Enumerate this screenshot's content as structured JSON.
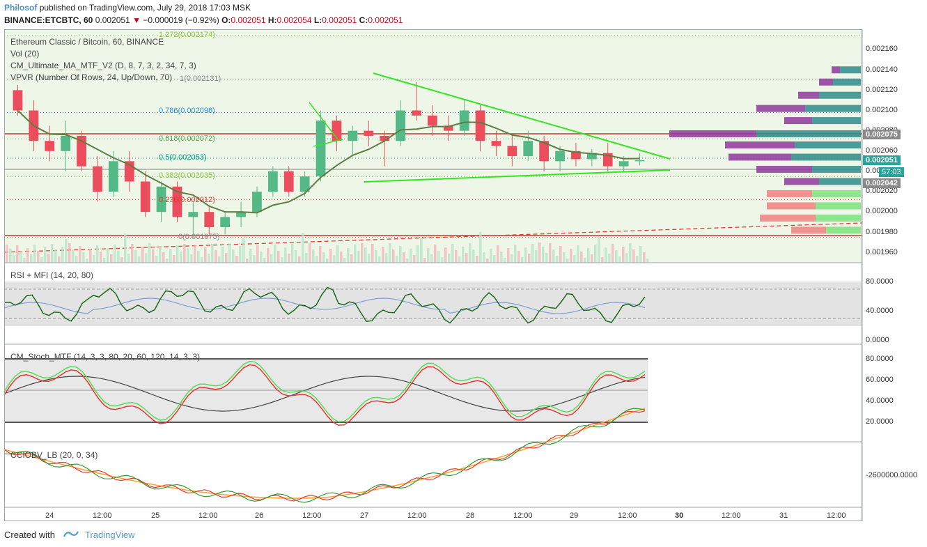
{
  "header": {
    "author": "Philosof",
    "published": "published on TradingView.com, July 29, 2018 17:03 MSK",
    "symbol": "BINANCE:ETCBTC, 60",
    "last": "0.002051",
    "change": "−0.000019 (−0.92%)",
    "o_label": "O:",
    "o": "0.002051",
    "h_label": "H:",
    "h": "0.002054",
    "l_label": "L:",
    "l": "0.002051",
    "c_label": "C:",
    "c": "0.002051"
  },
  "legend": {
    "title": "Ethereum Classic / Bitcoin, 60, BINANCE",
    "vol": "Vol (20)",
    "ma": "CM_Ultimate_MA_MTF_V2 (D, 8, 7, 3, 2, 34, 7, 3)",
    "vpvr": "VPVR (Number Of Rows, 24, Up/Down, 70)"
  },
  "fib_labels": [
    "1.272(0.002174)",
    "1(0.002131)",
    "0.786(0.002098)",
    "0.618(0.002072)",
    "0.5(0.002053)",
    "0.382(0.002035)",
    "0.236(0.002012)",
    "0(0.001975)"
  ],
  "price_axis": [
    "0.002160",
    "0.002140",
    "0.002120",
    "0.002100",
    "0.002080",
    "0.002060",
    "0.002040",
    "0.002020",
    "0.002000",
    "0.001980",
    "0.001960"
  ],
  "price_badges": [
    "0.002075",
    "0.002051",
    "57:03",
    "0.002042"
  ],
  "rsi": {
    "label": "RSI + MFI (14, 20, 80)",
    "axis": [
      "80.0000",
      "40.0000",
      "0.0000"
    ]
  },
  "stoch": {
    "label": "CM_Stoch_MTF (14, 3, 3, 80, 20, 60, 120, 14, 3, 3)",
    "axis": [
      "80.0000",
      "60.0000",
      "40.0000",
      "20.0000"
    ]
  },
  "cci": {
    "label": "CCIOBV_LB (20, 0, 34)",
    "axis": [
      "-2600000.0000"
    ]
  },
  "time_axis": [
    "24",
    "12:00",
    "25",
    "12:00",
    "26",
    "12:00",
    "27",
    "12:00",
    "28",
    "12:00",
    "29",
    "12:00",
    "30",
    "12:00",
    "31",
    "12:00"
  ],
  "footer": {
    "created": "Created with",
    "brand": "TradingView"
  },
  "colors": {
    "up": "#53b987",
    "down": "#eb4d5c",
    "ma": "#5b7f43",
    "trend": "#33e61f",
    "support": "#c0392b",
    "vp_up": "#2e8b8b",
    "vp_down": "#8e3a9b"
  },
  "chart_data": {
    "type": "candlestick",
    "price_range": [
      0.00195,
      0.00218
    ],
    "fib_levels": [
      0.002174,
      0.002131,
      0.002098,
      0.002072,
      0.002053,
      0.002035,
      0.002012,
      0.001975
    ],
    "candles_approx": [
      [
        0.00212,
        0.002125,
        0.002095,
        0.0021
      ],
      [
        0.0021,
        0.00211,
        0.00206,
        0.00207
      ],
      [
        0.00207,
        0.002085,
        0.00205,
        0.00206
      ],
      [
        0.00206,
        0.00209,
        0.00204,
        0.002075
      ],
      [
        0.002075,
        0.00208,
        0.00204,
        0.002045
      ],
      [
        0.002045,
        0.002055,
        0.00201,
        0.00202
      ],
      [
        0.00202,
        0.00206,
        0.002015,
        0.00205
      ],
      [
        0.00205,
        0.00206,
        0.00202,
        0.00203
      ],
      [
        0.00203,
        0.00204,
        0.001995,
        0.002
      ],
      [
        0.002,
        0.00203,
        0.00199,
        0.002025
      ],
      [
        0.002025,
        0.00203,
        0.00199,
        0.001995
      ],
      [
        0.001995,
        0.00201,
        0.001975,
        0.002
      ],
      [
        0.002,
        0.002005,
        0.001978,
        0.001985
      ],
      [
        0.001985,
        0.002,
        0.001978,
        0.001995
      ],
      [
        0.001995,
        0.00201,
        0.001985,
        0.002
      ],
      [
        0.002,
        0.002025,
        0.001995,
        0.00202
      ],
      [
        0.00202,
        0.002045,
        0.002015,
        0.00204
      ],
      [
        0.00204,
        0.002045,
        0.002015,
        0.00202
      ],
      [
        0.00202,
        0.00204,
        0.002015,
        0.002035
      ],
      [
        0.002035,
        0.0021,
        0.00203,
        0.00209
      ],
      [
        0.00209,
        0.002095,
        0.00206,
        0.00207
      ],
      [
        0.00207,
        0.002085,
        0.002055,
        0.00208
      ],
      [
        0.00208,
        0.00209,
        0.002065,
        0.002075
      ],
      [
        0.002075,
        0.00208,
        0.002045,
        0.00207
      ],
      [
        0.00207,
        0.00211,
        0.002065,
        0.0021
      ],
      [
        0.0021,
        0.002128,
        0.00209,
        0.002095
      ],
      [
        0.002095,
        0.002105,
        0.002075,
        0.002085
      ],
      [
        0.002085,
        0.002095,
        0.00207,
        0.00208
      ],
      [
        0.00208,
        0.00211,
        0.002075,
        0.0021
      ],
      [
        0.0021,
        0.002105,
        0.00206,
        0.00207
      ],
      [
        0.00207,
        0.00208,
        0.002055,
        0.002065
      ],
      [
        0.002065,
        0.002075,
        0.002045,
        0.002055
      ],
      [
        0.002055,
        0.00208,
        0.00205,
        0.00207
      ],
      [
        0.00207,
        0.002075,
        0.00204,
        0.00205
      ],
      [
        0.00205,
        0.002065,
        0.00204,
        0.00206
      ],
      [
        0.00206,
        0.002068,
        0.002045,
        0.002052
      ],
      [
        0.002052,
        0.002062,
        0.002045,
        0.002058
      ],
      [
        0.002058,
        0.002068,
        0.00204,
        0.002045
      ],
      [
        0.002045,
        0.002055,
        0.00204,
        0.00205
      ],
      [
        0.00205,
        0.002058,
        0.002046,
        0.002051
      ]
    ],
    "rsi_bands": [
      20,
      80
    ],
    "stoch_bands": [
      20,
      60,
      80
    ],
    "cci_value": -2600000
  }
}
